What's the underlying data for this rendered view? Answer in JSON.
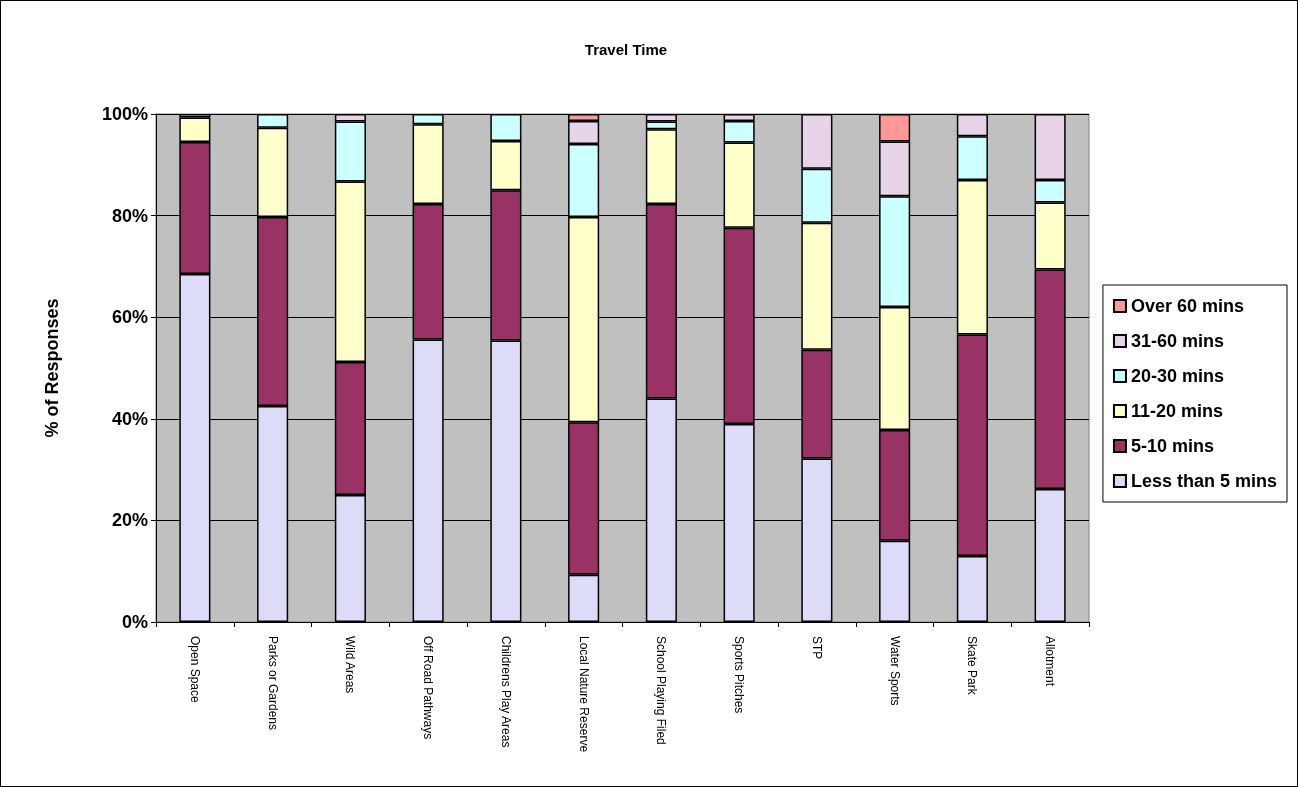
{
  "chart_data": {
    "type": "bar",
    "stacked": true,
    "title": "Travel Time",
    "ylabel": "% of Responses",
    "categories": [
      "Open Space",
      "Parks or Gardens",
      "Wild Areas",
      "Off Road Pathways",
      "Childrens Play Areas",
      "Local Nature Reserve",
      "School Playing Filed",
      "Sports Pitches",
      "STP",
      "Water Sports",
      "Skate Park",
      "Allotment"
    ],
    "series": [
      {
        "name": "Less than 5 mins",
        "color": "#dcdcf8",
        "values": [
          68.5,
          42.5,
          25,
          55.6,
          55.4,
          9.3,
          44,
          39,
          32.2,
          16,
          13,
          26.2
        ]
      },
      {
        "name": "5-10 mins",
        "color": "#993366",
        "values": [
          26,
          37.2,
          26.2,
          26.7,
          29.6,
          30,
          38.3,
          38.6,
          21.4,
          21.8,
          43.6,
          43.2
        ]
      },
      {
        "name": "11-20 mins",
        "color": "#ffffcc",
        "values": [
          4.8,
          17.6,
          35.5,
          15.7,
          9.7,
          40.4,
          14.7,
          16.8,
          25,
          24.2,
          30.4,
          13.2
        ]
      },
      {
        "name": "20-30 mins",
        "color": "#ccffff",
        "values": [
          0,
          2.7,
          11.8,
          2,
          5.3,
          14.4,
          1.5,
          4.2,
          10.6,
          21.8,
          8.6,
          4.4
        ]
      },
      {
        "name": "31-60 mins",
        "color": "#e8d4e8",
        "values": [
          0.7,
          0,
          1.5,
          0,
          0,
          4.5,
          1.5,
          1.4,
          10.8,
          10.8,
          4.4,
          13
        ]
      },
      {
        "name": "Over 60 mins",
        "color": "#ff9999",
        "values": [
          null,
          0,
          0,
          0,
          0,
          1.4,
          0,
          0,
          0,
          5.4,
          0,
          0
        ]
      }
    ],
    "ylim": [
      0,
      100
    ],
    "yticks": [
      {
        "value": 0,
        "label": "0%"
      },
      {
        "value": 20,
        "label": "20%"
      },
      {
        "value": 40,
        "label": "40%"
      },
      {
        "value": 60,
        "label": "60%"
      },
      {
        "value": 80,
        "label": "80%"
      },
      {
        "value": 100,
        "label": "100%"
      }
    ],
    "grid": "y",
    "legend": "right"
  }
}
